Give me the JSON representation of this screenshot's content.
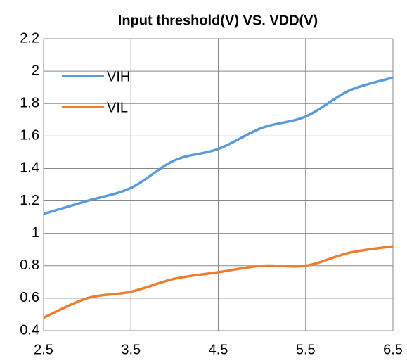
{
  "chart_data": {
    "type": "line",
    "title": "Input threshold(V) VS. VDD(V)",
    "x": [
      2.5,
      3.0,
      3.5,
      4.0,
      4.5,
      5.0,
      5.5,
      6.0,
      6.5
    ],
    "series": [
      {
        "name": "VIH",
        "color": "#5b9bd5",
        "values": [
          1.12,
          1.2,
          1.28,
          1.45,
          1.52,
          1.65,
          1.72,
          1.88,
          1.96
        ]
      },
      {
        "name": "VIL",
        "color": "#ed7d31",
        "values": [
          0.48,
          0.6,
          0.64,
          0.72,
          0.76,
          0.8,
          0.8,
          0.88,
          0.92
        ]
      }
    ],
    "xlim": [
      2.5,
      6.5
    ],
    "xticks": [
      2.5,
      3.5,
      4.5,
      5.5,
      6.5
    ],
    "ylim": [
      0.4,
      2.2
    ],
    "yticks": [
      0.4,
      0.6,
      0.8,
      1,
      1.2,
      1.4,
      1.6,
      1.8,
      2,
      2.2
    ],
    "grid": true,
    "legend": "upper left"
  }
}
